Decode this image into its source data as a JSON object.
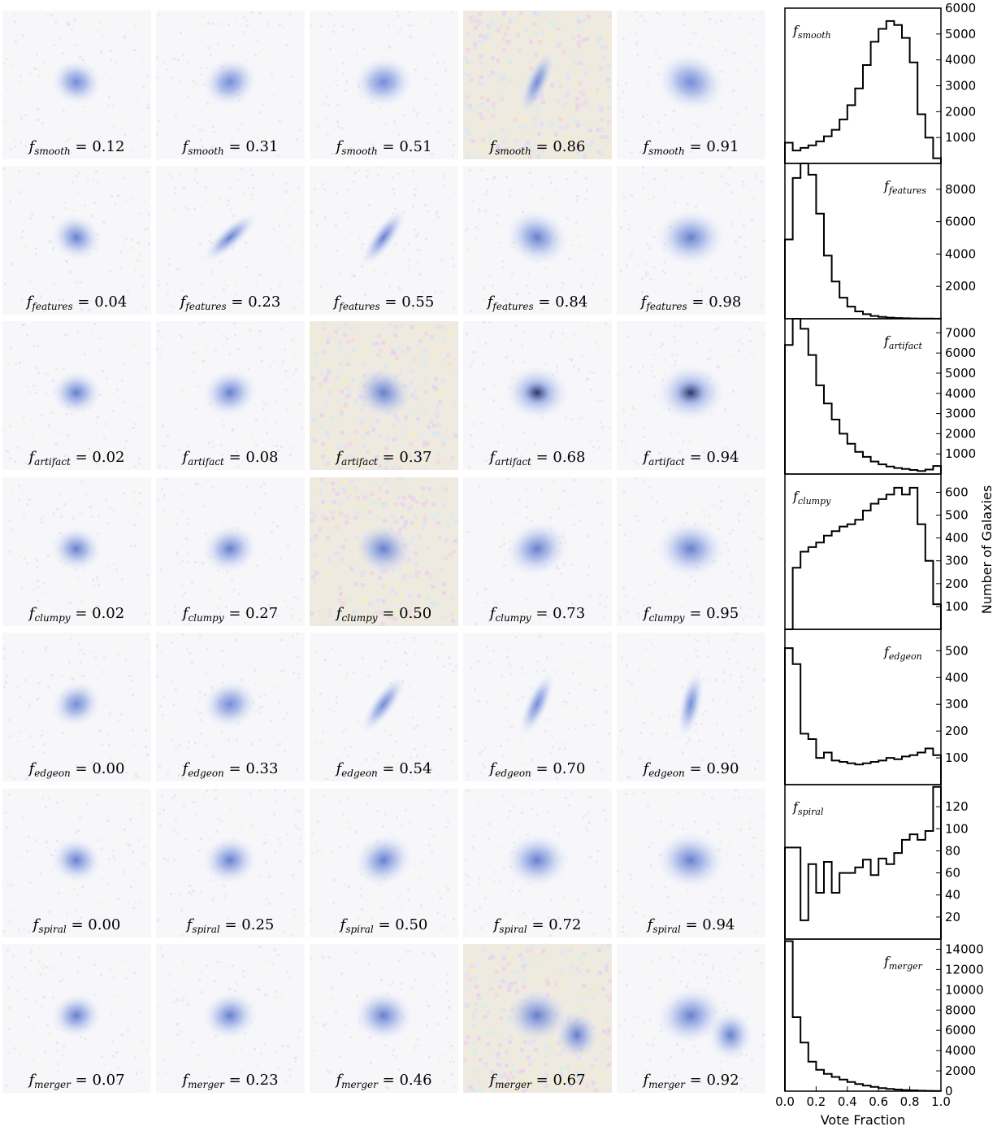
{
  "grid": {
    "rows": [
      {
        "symbol": "f",
        "subscript": "smooth",
        "values": [
          "0.12",
          "0.31",
          "0.51",
          "0.86",
          "0.91"
        ]
      },
      {
        "symbol": "f",
        "subscript": "features",
        "values": [
          "0.04",
          "0.23",
          "0.55",
          "0.84",
          "0.98"
        ]
      },
      {
        "symbol": "f",
        "subscript": "artifact",
        "values": [
          "0.02",
          "0.08",
          "0.37",
          "0.68",
          "0.94"
        ]
      },
      {
        "symbol": "f",
        "subscript": "clumpy",
        "values": [
          "0.02",
          "0.27",
          "0.50",
          "0.73",
          "0.95"
        ]
      },
      {
        "symbol": "f",
        "subscript": "edgeon",
        "values": [
          "0.00",
          "0.33",
          "0.54",
          "0.70",
          "0.90"
        ]
      },
      {
        "symbol": "f",
        "subscript": "spiral",
        "values": [
          "0.00",
          "0.25",
          "0.50",
          "0.72",
          "0.94"
        ]
      },
      {
        "symbol": "f",
        "subscript": "merger",
        "values": [
          "0.07",
          "0.23",
          "0.46",
          "0.67",
          "0.92"
        ]
      }
    ]
  },
  "chart_data": {
    "type": "histogram",
    "xlabel": "Vote Fraction",
    "ylabel": "Number of Galaxies",
    "xlim": [
      0.0,
      1.0
    ],
    "xticks": [
      "0.0",
      "0.2",
      "0.4",
      "0.6",
      "0.8",
      "1.0"
    ],
    "bin_edges": [
      0.0,
      0.05,
      0.1,
      0.15,
      0.2,
      0.25,
      0.3,
      0.35,
      0.4,
      0.45,
      0.5,
      0.55,
      0.6,
      0.65,
      0.7,
      0.75,
      0.8,
      0.85,
      0.9,
      0.95,
      1.0
    ],
    "panels": [
      {
        "label_symbol": "f",
        "label_sub": "smooth",
        "label_position": "top-left",
        "ylim": [
          0,
          6000
        ],
        "yticks": [
          1000,
          2000,
          3000,
          4000,
          5000,
          6000
        ],
        "values": [
          800,
          500,
          600,
          700,
          850,
          1050,
          1300,
          1700,
          2250,
          2900,
          3800,
          4700,
          5200,
          5500,
          5350,
          4850,
          3900,
          1900,
          1000,
          200
        ]
      },
      {
        "label_symbol": "f",
        "label_sub": "features",
        "label_position": "top-right",
        "ylim": [
          0,
          9600
        ],
        "yticks": [
          2000,
          4000,
          6000,
          8000
        ],
        "values": [
          4900,
          8700,
          9600,
          8900,
          6500,
          3900,
          2300,
          1300,
          750,
          450,
          280,
          170,
          110,
          70,
          45,
          30,
          20,
          12,
          8,
          5
        ]
      },
      {
        "label_symbol": "f",
        "label_sub": "artifact",
        "label_position": "top-right",
        "ylim": [
          0,
          7700
        ],
        "yticks": [
          1000,
          2000,
          3000,
          4000,
          5000,
          6000,
          7000
        ],
        "values": [
          6400,
          7700,
          7200,
          5900,
          4400,
          3500,
          2700,
          2000,
          1500,
          1100,
          850,
          620,
          480,
          370,
          300,
          250,
          200,
          150,
          220,
          400
        ]
      },
      {
        "label_symbol": "f",
        "label_sub": "clumpy",
        "label_position": "top-left",
        "ylim": [
          0,
          680
        ],
        "yticks": [
          100,
          200,
          300,
          400,
          500,
          600
        ],
        "values": [
          0,
          270,
          340,
          360,
          380,
          410,
          430,
          450,
          460,
          480,
          520,
          550,
          570,
          590,
          620,
          590,
          620,
          460,
          300,
          110
        ]
      },
      {
        "label_symbol": "f",
        "label_sub": "edgeon",
        "label_position": "top-right",
        "ylim": [
          0,
          580
        ],
        "yticks": [
          100,
          200,
          300,
          400,
          500
        ],
        "values": [
          510,
          450,
          190,
          170,
          100,
          120,
          90,
          85,
          80,
          75,
          80,
          85,
          90,
          100,
          95,
          105,
          110,
          120,
          135,
          110
        ]
      },
      {
        "label_symbol": "f",
        "label_sub": "spiral",
        "label_position": "top-left",
        "ylim": [
          0,
          140
        ],
        "yticks": [
          20,
          40,
          60,
          80,
          100,
          120
        ],
        "values": [
          83,
          83,
          17,
          68,
          42,
          70,
          42,
          60,
          60,
          65,
          72,
          58,
          73,
          68,
          78,
          90,
          95,
          90,
          98,
          138
        ]
      },
      {
        "label_symbol": "f",
        "label_sub": "merger",
        "label_position": "top-right",
        "ylim": [
          0,
          15000
        ],
        "yticks": [
          0,
          2000,
          4000,
          6000,
          8000,
          10000,
          12000,
          14000
        ],
        "values": [
          14800,
          7300,
          4800,
          2900,
          2100,
          1700,
          1400,
          1150,
          900,
          700,
          550,
          420,
          300,
          220,
          160,
          110,
          80,
          50,
          30,
          15
        ]
      }
    ]
  }
}
